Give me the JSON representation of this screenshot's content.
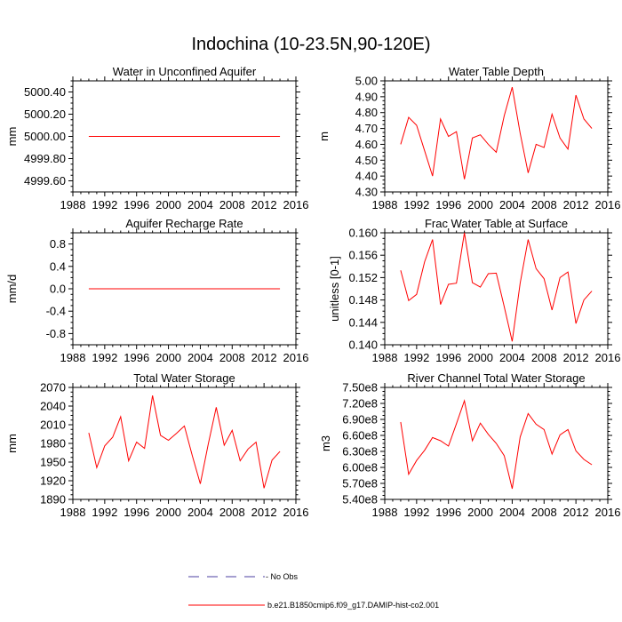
{
  "figure_title": "Indochina (10-23.5N,90-120E)",
  "colors": {
    "series": "#ff0000",
    "obs": "#4b3fa0",
    "axis": "#000000"
  },
  "legend": {
    "obs_label": "- No Obs",
    "model_label": "b.e21.B1850cmip6.f09_g17.DAMIP-hist-co2.001"
  },
  "chart_data": [
    {
      "type": "line",
      "title": "Water in Unconfined Aquifer",
      "ylabel": "mm",
      "xlim": [
        1988,
        2016
      ],
      "ylim": [
        4999.5,
        5000.5
      ],
      "xticks": [
        1988,
        1992,
        1996,
        2000,
        2004,
        2008,
        2012,
        2016
      ],
      "xtick_labels": [
        "1988",
        "1992",
        "1996",
        "2000",
        "2004",
        "2008",
        "2012",
        "2016"
      ],
      "yticks": [
        4999.6,
        4999.8,
        5000.0,
        5000.2,
        5000.4
      ],
      "ytick_labels": [
        "4999.60",
        "4999.80",
        "5000.00",
        "5000.20",
        "5000.40"
      ],
      "grid": false,
      "series": [
        {
          "x": [
            1990,
            1991,
            1992,
            1993,
            1994,
            1995,
            1996,
            1997,
            1998,
            1999,
            2000,
            2001,
            2002,
            2003,
            2004,
            2005,
            2006,
            2007,
            2008,
            2009,
            2010,
            2011,
            2012,
            2013,
            2014
          ],
          "values": [
            5000,
            5000,
            5000,
            5000,
            5000,
            5000,
            5000,
            5000,
            5000,
            5000,
            5000,
            5000,
            5000,
            5000,
            5000,
            5000,
            5000,
            5000,
            5000,
            5000,
            5000,
            5000,
            5000,
            5000,
            5000
          ]
        }
      ]
    },
    {
      "type": "line",
      "title": "Water Table Depth",
      "ylabel": "m",
      "xlim": [
        1988,
        2016
      ],
      "ylim": [
        4.3,
        5.0
      ],
      "xticks": [
        1988,
        1992,
        1996,
        2000,
        2004,
        2008,
        2012,
        2016
      ],
      "xtick_labels": [
        "1988",
        "1992",
        "1996",
        "2000",
        "2004",
        "2008",
        "2012",
        "2016"
      ],
      "yticks": [
        4.3,
        4.4,
        4.5,
        4.6,
        4.7,
        4.8,
        4.9,
        5.0
      ],
      "ytick_labels": [
        "4.30",
        "4.40",
        "4.50",
        "4.60",
        "4.70",
        "4.80",
        "4.90",
        "5.00"
      ],
      "grid": false,
      "series": [
        {
          "x": [
            1990,
            1991,
            1992,
            1993,
            1994,
            1995,
            1996,
            1997,
            1998,
            1999,
            2000,
            2001,
            2002,
            2003,
            2004,
            2005,
            2006,
            2007,
            2008,
            2009,
            2010,
            2011,
            2012,
            2013,
            2014
          ],
          "values": [
            4.6,
            4.77,
            4.72,
            4.56,
            4.4,
            4.76,
            4.65,
            4.68,
            4.38,
            4.64,
            4.66,
            4.6,
            4.55,
            4.78,
            4.96,
            4.67,
            4.42,
            4.6,
            4.58,
            4.79,
            4.64,
            4.57,
            4.91,
            4.76,
            4.7
          ]
        }
      ]
    },
    {
      "type": "line",
      "title": "Aquifer Recharge Rate",
      "ylabel": "mm/d",
      "xlim": [
        1988,
        2016
      ],
      "ylim": [
        -1.0,
        1.0
      ],
      "xticks": [
        1988,
        1992,
        1996,
        2000,
        2004,
        2008,
        2012,
        2016
      ],
      "xtick_labels": [
        "1988",
        "1992",
        "1996",
        "2000",
        "2004",
        "2008",
        "2012",
        "2016"
      ],
      "yticks": [
        -0.8,
        -0.4,
        0.0,
        0.4,
        0.8
      ],
      "ytick_labels": [
        "-0.8",
        "-0.4",
        "0.0",
        "0.4",
        "0.8"
      ],
      "grid": false,
      "series": [
        {
          "x": [
            1990,
            1991,
            1992,
            1993,
            1994,
            1995,
            1996,
            1997,
            1998,
            1999,
            2000,
            2001,
            2002,
            2003,
            2004,
            2005,
            2006,
            2007,
            2008,
            2009,
            2010,
            2011,
            2012,
            2013,
            2014
          ],
          "values": [
            0,
            0,
            0,
            0,
            0,
            0,
            0,
            0,
            0,
            0,
            0,
            0,
            0,
            0,
            0,
            0,
            0,
            0,
            0,
            0,
            0,
            0,
            0,
            0,
            0
          ]
        }
      ]
    },
    {
      "type": "line",
      "title": "Frac Water Table at Surface",
      "ylabel": "unitless [0-1]",
      "xlim": [
        1988,
        2016
      ],
      "ylim": [
        0.14,
        0.16
      ],
      "xticks": [
        1988,
        1992,
        1996,
        2000,
        2004,
        2008,
        2012,
        2016
      ],
      "xtick_labels": [
        "1988",
        "1992",
        "1996",
        "2000",
        "2004",
        "2008",
        "2012",
        "2016"
      ],
      "yticks": [
        0.14,
        0.144,
        0.148,
        0.152,
        0.156,
        0.16
      ],
      "ytick_labels": [
        "0.140",
        "0.144",
        "0.148",
        "0.152",
        "0.156",
        "0.160"
      ],
      "grid": false,
      "series": [
        {
          "x": [
            1990,
            1991,
            1992,
            1993,
            1994,
            1995,
            1996,
            1997,
            1998,
            1999,
            2000,
            2001,
            2002,
            2003,
            2004,
            2005,
            2006,
            2007,
            2008,
            2009,
            2010,
            2011,
            2012,
            2013,
            2014
          ],
          "values": [
            0.1533,
            0.1479,
            0.149,
            0.1548,
            0.1588,
            0.1472,
            0.1508,
            0.151,
            0.16,
            0.1511,
            0.1503,
            0.1527,
            0.1528,
            0.1468,
            0.1406,
            0.151,
            0.1588,
            0.1536,
            0.1518,
            0.1462,
            0.152,
            0.153,
            0.1438,
            0.148,
            0.1496
          ]
        }
      ]
    },
    {
      "type": "line",
      "title": "Total Water Storage",
      "ylabel": "mm",
      "xlim": [
        1988,
        2016
      ],
      "ylim": [
        1890,
        2070
      ],
      "xticks": [
        1988,
        1992,
        1996,
        2000,
        2004,
        2008,
        2012,
        2016
      ],
      "xtick_labels": [
        "1988",
        "1992",
        "1996",
        "2000",
        "2004",
        "2008",
        "2012",
        "2016"
      ],
      "yticks": [
        1890,
        1920,
        1950,
        1980,
        2010,
        2040,
        2070
      ],
      "ytick_labels": [
        "1890",
        "1920",
        "1950",
        "1980",
        "2010",
        "2040",
        "2070"
      ],
      "grid": false,
      "series": [
        {
          "x": [
            1990,
            1991,
            1992,
            1993,
            1994,
            1995,
            1996,
            1997,
            1998,
            1999,
            2000,
            2001,
            2002,
            2003,
            2004,
            2005,
            2006,
            2007,
            2008,
            2009,
            2010,
            2011,
            2012,
            2013,
            2014
          ],
          "values": [
            1997,
            1941,
            1976,
            1990,
            2023,
            1952,
            1982,
            1972,
            2057,
            1993,
            1985,
            1996,
            2008,
            1960,
            1915,
            1979,
            2038,
            1977,
            2001,
            1952,
            1971,
            1982,
            1908,
            1953,
            1967
          ]
        }
      ]
    },
    {
      "type": "line",
      "title": "River Channel Total Water Storage",
      "ylabel": "m3",
      "xlim": [
        1988,
        2016
      ],
      "ylim": [
        540000000,
        750000000
      ],
      "xticks": [
        1988,
        1992,
        1996,
        2000,
        2004,
        2008,
        2012,
        2016
      ],
      "xtick_labels": [
        "1988",
        "1992",
        "1996",
        "2000",
        "2004",
        "2008",
        "2012",
        "2016"
      ],
      "yticks": [
        540000000,
        570000000,
        600000000,
        630000000,
        660000000,
        690000000,
        720000000,
        750000000
      ],
      "ytick_labels": [
        "5.40e8",
        "5.70e8",
        "6.00e8",
        "6.30e8",
        "6.60e8",
        "6.90e8",
        "7.20e8",
        "7.50e8"
      ],
      "grid": false,
      "series": [
        {
          "x": [
            1990,
            1991,
            1992,
            1993,
            1994,
            1995,
            1996,
            1997,
            1998,
            1999,
            2000,
            2001,
            2002,
            2003,
            2004,
            2005,
            2006,
            2007,
            2008,
            2009,
            2010,
            2011,
            2012,
            2013,
            2014
          ],
          "values": [
            685000000,
            587000000,
            613000000,
            632000000,
            656000000,
            650000000,
            640000000,
            682000000,
            725000000,
            650000000,
            683000000,
            662000000,
            645000000,
            622000000,
            560000000,
            657000000,
            701000000,
            681000000,
            671000000,
            625000000,
            661000000,
            671000000,
            631000000,
            615000000,
            605000000
          ]
        }
      ]
    }
  ]
}
